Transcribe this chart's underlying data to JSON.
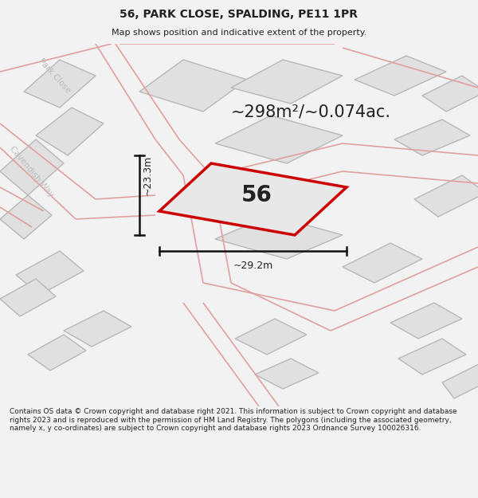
{
  "title_line1": "56, PARK CLOSE, SPALDING, PE11 1PR",
  "title_line2": "Map shows position and indicative extent of the property.",
  "area_text": "~298m²/~0.074ac.",
  "property_number": "56",
  "dim_width": "~29.2m",
  "dim_height": "~23.3m",
  "footer_text": "Contains OS data © Crown copyright and database right 2021. This information is subject to Crown copyright and database rights 2023 and is reproduced with the permission of HM Land Registry. The polygons (including the associated geometry, namely x, y co-ordinates) are subject to Crown copyright and database rights 2023 Ordnance Survey 100026316.",
  "bg_color": "#f2f2f2",
  "map_bg": "#ffffff",
  "plot_face": "#e0e0e0",
  "plot_edge": "#b8b8b8",
  "prop_edge": "#cc0000",
  "prop_face": "#e8e8e8",
  "dim_color": "#111111",
  "text_color": "#222222",
  "street_color": "#bbbbbb",
  "pink": "#e0a0a0",
  "title_fontsize": 10,
  "subtitle_fontsize": 8,
  "footer_fontsize": 6.5
}
